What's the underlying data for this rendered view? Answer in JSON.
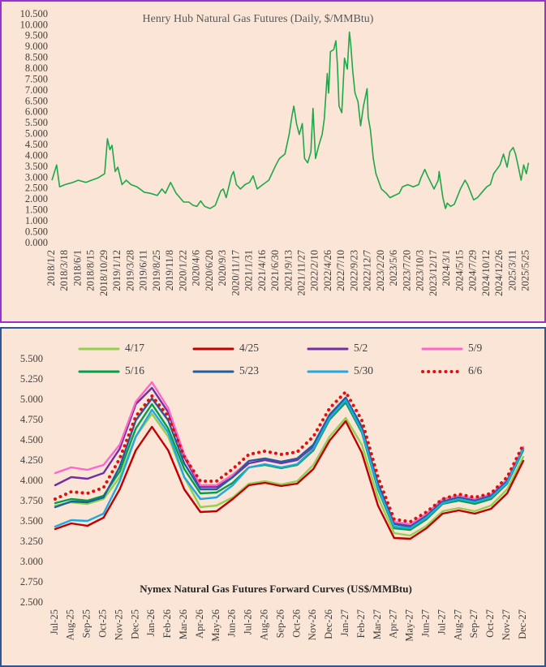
{
  "chart_data": [
    {
      "type": "line",
      "title": "Henry Hub Natural Gas Futures (Daily, $/MMBtu)",
      "color": "#1fa84a",
      "x": [
        "2018/1/2",
        "2018/1/10",
        "2018/1/29",
        "2018/2/15",
        "2018/3/18",
        "2018/5/1",
        "2018/6/1",
        "2018/7/15",
        "2018/8/15",
        "2018/9/20",
        "2018/10/29",
        "2018/11/14",
        "2018/11/28",
        "2018/12/10",
        "2018/12/28",
        "2019/1/12",
        "2019/2/5",
        "2019/3/1",
        "2019/3/28",
        "2019/5/1",
        "2019/6/11",
        "2019/7/15",
        "2019/8/25",
        "2019/9/20",
        "2019/10/10",
        "2019/11/8",
        "2019/12/10",
        "2020/1/22",
        "2020/2/20",
        "2020/3/15",
        "2020/4/6",
        "2020/4/28",
        "2020/5/20",
        "2020/6/20",
        "2020/7/20",
        "2020/8/20",
        "2020/9/3",
        "2020/9/20",
        "2020/10/20",
        "2020/11/1",
        "2020/11/17",
        "2020/12/10",
        "2021/1/5",
        "2021/1/31",
        "2021/2/20",
        "2021/3/15",
        "2021/4/16",
        "2021/5/20",
        "2021/6/30",
        "2021/7/20",
        "2021/8/20",
        "2021/9/13",
        "2021/9/30",
        "2021/10/10",
        "2021/10/25",
        "2021/11/10",
        "2021/11/27",
        "2021/12/10",
        "2021/12/28",
        "2022/1/15",
        "2022/1/27",
        "2022/2/10",
        "2022/3/1",
        "2022/3/20",
        "2022/4/1",
        "2022/4/18",
        "2022/4/26",
        "2022/5/6",
        "2022/5/25",
        "2022/6/6",
        "2022/6/15",
        "2022/6/24",
        "2022/7/10",
        "2022/7/25",
        "2022/8/10",
        "2022/8/22",
        "2022/8/30",
        "2022/9/10",
        "2022/9/23",
        "2022/10/10",
        "2022/10/25",
        "2022/11/10",
        "2022/12/1",
        "2022/12/7",
        "2022/12/20",
        "2023/1/5",
        "2023/1/20",
        "2023/2/20",
        "2023/3/20",
        "2023/4/10",
        "2023/5/6",
        "2023/6/1",
        "2023/6/20",
        "2023/7/20",
        "2023/8/20",
        "2023/9/20",
        "2023/10/3",
        "2023/10/25",
        "2023/11/10",
        "2023/12/17",
        "2024/1/10",
        "2024/1/15",
        "2024/2/5",
        "2024/2/20",
        "2024/3/1",
        "2024/3/20",
        "2024/4/10",
        "2024/5/15",
        "2024/6/10",
        "2024/6/25",
        "2024/7/29",
        "2024/8/20",
        "2024/9/10",
        "2024/10/12",
        "2024/11/1",
        "2024/11/20",
        "2024/12/26",
        "2025/1/15",
        "2025/2/5",
        "2025/2/20",
        "2025/3/11",
        "2025/3/25",
        "2025/4/10",
        "2025/4/25",
        "2025/5/10",
        "2025/5/25",
        "2025/6/6"
      ],
      "values": [
        2.9,
        3.1,
        3.6,
        2.6,
        2.7,
        2.8,
        2.9,
        2.8,
        2.9,
        3.0,
        3.2,
        4.8,
        4.3,
        4.5,
        3.3,
        3.5,
        2.7,
        2.9,
        2.7,
        2.6,
        2.35,
        2.3,
        2.2,
        2.5,
        2.3,
        2.8,
        2.3,
        1.9,
        1.9,
        1.75,
        1.7,
        1.95,
        1.7,
        1.6,
        1.75,
        2.4,
        2.5,
        2.1,
        3.1,
        3.3,
        2.7,
        2.5,
        2.7,
        2.8,
        3.1,
        2.5,
        2.7,
        2.9,
        3.6,
        3.9,
        4.1,
        5.0,
        5.9,
        6.3,
        5.5,
        5.0,
        5.5,
        3.9,
        3.7,
        4.2,
        6.2,
        3.9,
        4.5,
        5.0,
        5.7,
        7.8,
        6.9,
        8.8,
        8.9,
        9.3,
        8.2,
        6.3,
        6.0,
        8.5,
        8.0,
        9.7,
        9.1,
        7.9,
        6.9,
        6.5,
        5.4,
        6.3,
        7.1,
        5.8,
        5.2,
        3.9,
        3.2,
        2.5,
        2.3,
        2.1,
        2.2,
        2.3,
        2.6,
        2.7,
        2.6,
        2.7,
        3.0,
        3.4,
        3.1,
        2.5,
        2.9,
        3.3,
        2.1,
        1.6,
        1.85,
        1.7,
        1.8,
        2.5,
        2.9,
        2.7,
        2.0,
        2.1,
        2.3,
        2.6,
        2.7,
        3.2,
        3.6,
        4.1,
        3.5,
        4.2,
        4.4,
        4.1,
        3.5,
        2.9,
        3.6,
        3.2,
        3.7
      ],
      "xlim": [
        "2018/1/2",
        "2025/6/9"
      ],
      "xticks": [
        "2018/1/2",
        "2018/3/18",
        "2018/6/1",
        "2018/8/15",
        "2018/10/29",
        "2019/1/12",
        "2019/3/28",
        "2019/6/11",
        "2019/8/25",
        "2019/11/8",
        "2020/1/22",
        "2020/4/6",
        "2020/6/20",
        "2020/9/3",
        "2020/11/17",
        "2021/1/31",
        "2021/4/16",
        "2021/6/30",
        "2021/9/13",
        "2021/11/27",
        "2022/2/10",
        "2022/4/26",
        "2022/7/10",
        "2022/9/23",
        "2022/12/7",
        "2023/2/20",
        "2023/5/6",
        "2023/7/20",
        "2023/10/3",
        "2023/12/17",
        "2024/3/1",
        "2024/5/15",
        "2024/7/29",
        "2024/10/12",
        "2024/12/26",
        "2025/3/11",
        "2025/5/25"
      ],
      "ylim": [
        0,
        10.5
      ],
      "yticks": [
        {
          "value": 0,
          "label": "0.000"
        },
        {
          "value": 0.5,
          "label": "0.500"
        },
        {
          "value": 1,
          "label": "1.000"
        },
        {
          "value": 1.5,
          "label": "1.500"
        },
        {
          "value": 2,
          "label": "2.000"
        },
        {
          "value": 2.5,
          "label": "2.500"
        },
        {
          "value": 3,
          "label": "3.000"
        },
        {
          "value": 3.5,
          "label": "3.500"
        },
        {
          "value": 4,
          "label": "4.000"
        },
        {
          "value": 4.5,
          "label": "4.500"
        },
        {
          "value": 5,
          "label": "5.000"
        },
        {
          "value": 5.5,
          "label": "5.500"
        },
        {
          "value": 6,
          "label": "6.000"
        },
        {
          "value": 6.5,
          "label": "6.500"
        },
        {
          "value": 7,
          "label": "7.000"
        },
        {
          "value": 7.5,
          "label": "7.500"
        },
        {
          "value": 8,
          "label": "8.000"
        },
        {
          "value": 8.5,
          "label": "8.500"
        },
        {
          "value": 9,
          "label": "9.000"
        },
        {
          "value": 9.5,
          "label": "9.500"
        },
        {
          "value": 10,
          "label": "10.000"
        },
        {
          "value": 10.5,
          "label": "10.500"
        }
      ]
    },
    {
      "type": "line",
      "title": "Nymex  Natural  Gas Futures Forward  Curves (US$/MMBtu)",
      "categories": [
        "Jul-25",
        "Aug-25",
        "Sep-25",
        "Oct-25",
        "Nov-25",
        "Dec-25",
        "Jan-26",
        "Feb-26",
        "Mar-26",
        "Apr-26",
        "May-26",
        "Jun-26",
        "Jul-26",
        "Aug-26",
        "Sep-26",
        "Oct-26",
        "Nov-26",
        "Dec-26",
        "Jan-27",
        "Feb-27",
        "Mar-27",
        "Apr-27",
        "May-27",
        "Jun-27",
        "Jul-27",
        "Aug-27",
        "Sep-27",
        "Oct-27",
        "Nov-27",
        "Dec-27"
      ],
      "series": [
        {
          "name": "4/17",
          "color": "#92d050",
          "values": [
            3.7,
            3.74,
            3.72,
            3.78,
            4.05,
            4.55,
            4.83,
            4.55,
            4.05,
            3.68,
            3.7,
            3.8,
            3.97,
            4.0,
            3.96,
            4.0,
            4.2,
            4.55,
            4.78,
            4.45,
            3.8,
            3.36,
            3.33,
            3.45,
            3.63,
            3.67,
            3.63,
            3.7,
            3.9,
            4.3
          ]
        },
        {
          "name": "4/25",
          "color": "#c00000",
          "values": [
            3.41,
            3.48,
            3.45,
            3.55,
            3.9,
            4.38,
            4.67,
            4.38,
            3.9,
            3.62,
            3.63,
            3.78,
            3.95,
            3.98,
            3.94,
            3.97,
            4.15,
            4.5,
            4.74,
            4.35,
            3.7,
            3.3,
            3.29,
            3.42,
            3.6,
            3.64,
            3.6,
            3.66,
            3.85,
            4.25
          ]
        },
        {
          "name": "5/2",
          "color": "#7030a0",
          "values": [
            3.95,
            4.05,
            4.03,
            4.1,
            4.4,
            4.95,
            5.15,
            4.85,
            4.3,
            3.93,
            3.93,
            4.05,
            4.22,
            4.26,
            4.22,
            4.26,
            4.43,
            4.8,
            5.02,
            4.65,
            3.95,
            3.48,
            3.45,
            3.58,
            3.75,
            3.8,
            3.76,
            3.82,
            4.0,
            4.4
          ]
        },
        {
          "name": "5/9",
          "color": "#ff66cc",
          "values": [
            4.1,
            4.17,
            4.14,
            4.2,
            4.45,
            4.98,
            5.22,
            4.9,
            4.33,
            3.95,
            3.95,
            4.08,
            4.25,
            4.28,
            4.24,
            4.28,
            4.45,
            4.82,
            5.03,
            4.66,
            3.97,
            3.5,
            3.47,
            3.6,
            3.78,
            3.82,
            3.78,
            3.84,
            4.02,
            4.42
          ]
        },
        {
          "name": "5/16",
          "color": "#00a04a",
          "values": [
            3.73,
            3.78,
            3.76,
            3.82,
            4.12,
            4.65,
            4.95,
            4.65,
            4.15,
            3.85,
            3.86,
            3.98,
            4.17,
            4.2,
            4.16,
            4.2,
            4.38,
            4.76,
            4.97,
            4.6,
            3.9,
            3.42,
            3.4,
            3.53,
            3.72,
            3.76,
            3.72,
            3.78,
            3.97,
            4.38
          ]
        },
        {
          "name": "5/23",
          "color": "#1f5fa0",
          "values": [
            3.68,
            3.75,
            3.74,
            3.8,
            4.18,
            4.75,
            5.02,
            4.75,
            4.22,
            3.9,
            3.9,
            4.05,
            4.25,
            4.28,
            4.24,
            4.28,
            4.45,
            4.82,
            5.03,
            4.67,
            3.97,
            3.47,
            3.44,
            3.57,
            3.75,
            3.8,
            3.76,
            3.82,
            4.0,
            4.4
          ]
        },
        {
          "name": "5/30",
          "color": "#22a8e0",
          "values": [
            3.44,
            3.52,
            3.51,
            3.6,
            4.0,
            4.55,
            4.88,
            4.6,
            4.05,
            3.78,
            3.8,
            3.95,
            4.17,
            4.21,
            4.17,
            4.21,
            4.4,
            4.78,
            5.0,
            4.62,
            3.92,
            3.44,
            3.42,
            3.55,
            3.73,
            3.78,
            3.74,
            3.8,
            3.98,
            4.4
          ]
        },
        {
          "name": "6/6",
          "color": "#e01010",
          "line_style": "dotted",
          "values": [
            3.78,
            3.87,
            3.85,
            3.92,
            4.28,
            4.8,
            5.05,
            4.8,
            4.3,
            4.0,
            4.0,
            4.15,
            4.33,
            4.37,
            4.33,
            4.36,
            4.55,
            4.9,
            5.1,
            4.75,
            4.05,
            3.53,
            3.5,
            3.62,
            3.78,
            3.84,
            3.8,
            3.85,
            4.05,
            4.45
          ]
        }
      ],
      "ylim": [
        2.5,
        5.5
      ],
      "yticks": [
        {
          "value": 2.5,
          "label": "2.500"
        },
        {
          "value": 2.75,
          "label": "2.750"
        },
        {
          "value": 3,
          "label": "3.000"
        },
        {
          "value": 3.25,
          "label": "3.250"
        },
        {
          "value": 3.5,
          "label": "3.500"
        },
        {
          "value": 3.75,
          "label": "3.750"
        },
        {
          "value": 4,
          "label": "4.000"
        },
        {
          "value": 4.25,
          "label": "4.250"
        },
        {
          "value": 4.5,
          "label": "4.500"
        },
        {
          "value": 4.75,
          "label": "4.750"
        },
        {
          "value": 5,
          "label": "5.000"
        },
        {
          "value": 5.25,
          "label": "5.250"
        },
        {
          "value": 5.5,
          "label": "5.500"
        }
      ]
    }
  ]
}
